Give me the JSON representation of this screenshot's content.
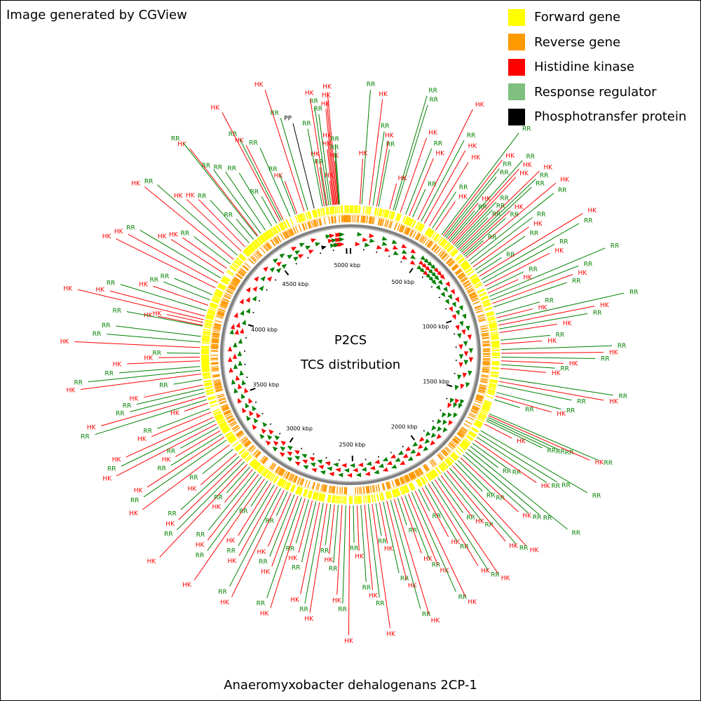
{
  "header": {
    "credit": "Image generated by CGView"
  },
  "footer": {
    "organism": "Anaeromyxobacter dehalogenans 2CP-1"
  },
  "legend": [
    {
      "label": "Forward gene",
      "color": "#ffff00"
    },
    {
      "label": "Reverse gene",
      "color": "#ff9900"
    },
    {
      "label": "Histidine kinase",
      "color": "#ff0000"
    },
    {
      "label": "Response regulator",
      "color": "#7fbf7f"
    },
    {
      "label": "Phosphotransfer protein",
      "color": "#000000"
    }
  ],
  "center": {
    "line1": "P2CS",
    "line2": "TCS distribution"
  },
  "genome": {
    "length_kbp": 5030,
    "tick_labels": [
      {
        "kbp": 500,
        "label": "500 kbp"
      },
      {
        "kbp": 1000,
        "label": "1000 kbp"
      },
      {
        "kbp": 1500,
        "label": "1500 kbp"
      },
      {
        "kbp": 2000,
        "label": "2000 kbp"
      },
      {
        "kbp": 2500,
        "label": "2500 kbp"
      },
      {
        "kbp": 3000,
        "label": "3000 kbp"
      },
      {
        "kbp": 3500,
        "label": "3500 kbp"
      },
      {
        "kbp": 4000,
        "label": "4000 kbp"
      },
      {
        "kbp": 4500,
        "label": "4500 kbp"
      },
      {
        "kbp": 5000,
        "label": "5000 kbp"
      }
    ]
  },
  "colors": {
    "histidine_kinase": "#ff0000",
    "response_regulator": "#008000",
    "phosphotransfer": "#000000",
    "backbone": "#808080",
    "forward_gene": "#ffff00",
    "reverse_gene": "#ff9900"
  },
  "features": [
    {
      "label": "HK",
      "type": "HK",
      "kbp": 4935
    },
    {
      "label": "HK",
      "type": "HK",
      "kbp": 4940
    },
    {
      "label": "HK",
      "type": "HK",
      "kbp": 4945
    },
    {
      "label": "HK",
      "type": "HK",
      "kbp": 4950
    },
    {
      "label": "HK",
      "type": "HK",
      "kbp": 4955
    },
    {
      "label": "HK",
      "type": "HK",
      "kbp": 4960
    },
    {
      "label": "HK",
      "type": "HK",
      "kbp": 4965
    },
    {
      "label": "RR",
      "type": "RR",
      "kbp": 4968
    },
    {
      "label": "RR",
      "type": "RR",
      "kbp": 4972
    },
    {
      "label": "RR",
      "type": "RR",
      "kbp": 4925
    },
    {
      "label": "RR",
      "type": "RR",
      "kbp": 4915
    },
    {
      "label": "HK",
      "type": "HK",
      "kbp": 4905
    },
    {
      "label": "RR",
      "type": "RR",
      "kbp": 4900
    },
    {
      "label": "HK",
      "type": "HK",
      "kbp": 4890
    },
    {
      "label": "RR",
      "type": "RR",
      "kbp": 4880
    },
    {
      "label": "PP",
      "type": "PP",
      "kbp": 4835
    },
    {
      "label": "RR",
      "type": "RR",
      "kbp": 4800
    },
    {
      "label": "HK",
      "type": "HK",
      "kbp": 4780
    },
    {
      "label": "HK",
      "type": "HK",
      "kbp": 4740
    },
    {
      "label": "RR",
      "type": "RR",
      "kbp": 4730
    },
    {
      "label": "RR",
      "type": "RR",
      "kbp": 4700
    },
    {
      "label": "HK",
      "type": "HK",
      "kbp": 4660
    },
    {
      "label": "RR",
      "type": "RR",
      "kbp": 4650
    },
    {
      "label": "HK",
      "type": "HK",
      "kbp": 4640
    },
    {
      "label": "RR",
      "type": "RR",
      "kbp": 4620
    },
    {
      "label": "RR",
      "type": "RR",
      "kbp": 4590
    },
    {
      "label": "RR",
      "type": "RR",
      "kbp": 4550
    },
    {
      "label": "RR",
      "type": "RR",
      "kbp": 4520
    },
    {
      "label": "HK",
      "type": "HK",
      "kbp": 4500
    },
    {
      "label": "RR",
      "type": "RR",
      "kbp": 4495
    },
    {
      "label": "RR",
      "type": "RR",
      "kbp": 4470
    },
    {
      "label": "RR",
      "type": "RR",
      "kbp": 4440
    },
    {
      "label": "HK",
      "type": "HK",
      "kbp": 4410
    },
    {
      "label": "HK",
      "type": "HK",
      "kbp": 4380
    },
    {
      "label": "RR",
      "type": "RR",
      "kbp": 4350
    },
    {
      "label": "HK",
      "type": "HK",
      "kbp": 4320
    },
    {
      "label": "RR",
      "type": "RR",
      "kbp": 4290
    },
    {
      "label": "HK",
      "type": "HK",
      "kbp": 4260
    },
    {
      "label": "HK",
      "type": "HK",
      "kbp": 4230
    },
    {
      "label": "RR",
      "type": "RR",
      "kbp": 4200
    },
    {
      "label": "HK",
      "type": "HK",
      "kbp": 4170
    },
    {
      "label": "HK",
      "type": "HK",
      "kbp": 4140
    },
    {
      "label": "RR",
      "type": "RR",
      "kbp": 4100
    },
    {
      "label": "RR",
      "type": "RR",
      "kbp": 4070
    },
    {
      "label": "HK",
      "type": "HK",
      "kbp": 4040
    },
    {
      "label": "RR",
      "type": "RR",
      "kbp": 4010
    },
    {
      "label": "HK",
      "type": "HK",
      "kbp": 3980
    },
    {
      "label": "HK",
      "type": "HK",
      "kbp": 3960
    },
    {
      "label": "HK",
      "type": "HK",
      "kbp": 3945
    },
    {
      "label": "HK",
      "type": "HK",
      "kbp": 3930
    },
    {
      "label": "RR",
      "type": "RR",
      "kbp": 3925
    },
    {
      "label": "RR",
      "type": "RR",
      "kbp": 3870
    },
    {
      "label": "RR",
      "type": "RR",
      "kbp": 3840
    },
    {
      "label": "HK",
      "type": "HK",
      "kbp": 3810
    },
    {
      "label": "RR",
      "type": "RR",
      "kbp": 3780
    },
    {
      "label": "HK",
      "type": "HK",
      "kbp": 3760
    },
    {
      "label": "HK",
      "type": "HK",
      "kbp": 3740
    },
    {
      "label": "RR",
      "type": "RR",
      "kbp": 3710
    },
    {
      "label": "RR",
      "type": "RR",
      "kbp": 3690
    },
    {
      "label": "HK",
      "type": "HK",
      "kbp": 3670
    },
    {
      "label": "RR",
      "type": "RR",
      "kbp": 3640
    },
    {
      "label": "HK",
      "type": "HK",
      "kbp": 3610
    },
    {
      "label": "RR",
      "type": "RR",
      "kbp": 3590
    },
    {
      "label": "RR",
      "type": "RR",
      "kbp": 3570
    },
    {
      "label": "HK",
      "type": "HK",
      "kbp": 3550
    },
    {
      "label": "RR",
      "type": "RR",
      "kbp": 3530
    },
    {
      "label": "HK",
      "type": "HK",
      "kbp": 3510
    },
    {
      "label": "RR",
      "type": "RR",
      "kbp": 3480
    },
    {
      "label": "HK",
      "type": "HK",
      "kbp": 3460
    },
    {
      "label": "HK",
      "type": "HK",
      "kbp": 3430
    },
    {
      "label": "RR",
      "type": "RR",
      "kbp": 3410
    },
    {
      "label": "HK",
      "type": "HK",
      "kbp": 3390
    },
    {
      "label": "RR",
      "type": "RR",
      "kbp": 3370
    },
    {
      "label": "HK",
      "type": "HK",
      "kbp": 3350
    },
    {
      "label": "RR",
      "type": "RR",
      "kbp": 3330
    },
    {
      "label": "HK",
      "type": "HK",
      "kbp": 3310
    },
    {
      "label": "RR",
      "type": "RR",
      "kbp": 3290
    },
    {
      "label": "HK",
      "type": "HK",
      "kbp": 3260
    },
    {
      "label": "RR",
      "type": "RR",
      "kbp": 3230
    },
    {
      "label": "HK",
      "type": "HK",
      "kbp": 3200
    },
    {
      "label": "RR",
      "type": "RR",
      "kbp": 3180
    },
    {
      "label": "HK",
      "type": "HK",
      "kbp": 3160
    },
    {
      "label": "RR",
      "type": "RR",
      "kbp": 3140
    },
    {
      "label": "HK",
      "type": "HK",
      "kbp": 3120
    },
    {
      "label": "RR",
      "type": "RR",
      "kbp": 3100
    },
    {
      "label": "HK",
      "type": "HK",
      "kbp": 3080
    },
    {
      "label": "RR",
      "type": "RR",
      "kbp": 3060
    },
    {
      "label": "HK",
      "type": "HK",
      "kbp": 3040
    },
    {
      "label": "RR",
      "type": "RR",
      "kbp": 3020
    },
    {
      "label": "HK",
      "type": "HK",
      "kbp": 3000
    },
    {
      "label": "RR",
      "type": "RR",
      "kbp": 2980
    },
    {
      "label": "HK",
      "type": "HK",
      "kbp": 2960
    },
    {
      "label": "RR",
      "type": "RR",
      "kbp": 2940
    },
    {
      "label": "HK",
      "type": "HK",
      "kbp": 2920
    },
    {
      "label": "RR",
      "type": "RR",
      "kbp": 2900
    },
    {
      "label": "HK",
      "type": "HK",
      "kbp": 2880
    },
    {
      "label": "RR",
      "type": "RR",
      "kbp": 2860
    },
    {
      "label": "HK",
      "type": "HK",
      "kbp": 2840
    },
    {
      "label": "RR",
      "type": "RR",
      "kbp": 2820
    },
    {
      "label": "HK",
      "type": "HK",
      "kbp": 2800
    },
    {
      "label": "RR",
      "type": "RR",
      "kbp": 2780
    },
    {
      "label": "HK",
      "type": "HK",
      "kbp": 2760
    },
    {
      "label": "RR",
      "type": "RR",
      "kbp": 2740
    },
    {
      "label": "HK",
      "type": "HK",
      "kbp": 2720
    },
    {
      "label": "RR",
      "type": "RR",
      "kbp": 2700
    },
    {
      "label": "HK",
      "type": "HK",
      "kbp": 2680
    },
    {
      "label": "RR",
      "type": "RR",
      "kbp": 2660
    },
    {
      "label": "HK",
      "type": "HK",
      "kbp": 2640
    },
    {
      "label": "RR",
      "type": "RR",
      "kbp": 2620
    },
    {
      "label": "HK",
      "type": "HK",
      "kbp": 2600
    },
    {
      "label": "RR",
      "type": "RR",
      "kbp": 2580
    },
    {
      "label": "HK",
      "type": "HK",
      "kbp": 2560
    },
    {
      "label": "RR",
      "type": "RR",
      "kbp": 2540
    },
    {
      "label": "HK",
      "type": "HK",
      "kbp": 2520
    },
    {
      "label": "RR",
      "type": "RR",
      "kbp": 2500
    },
    {
      "label": "HK",
      "type": "HK",
      "kbp": 2480
    },
    {
      "label": "RR",
      "type": "RR",
      "kbp": 2460
    },
    {
      "label": "HK",
      "type": "HK",
      "kbp": 2440
    },
    {
      "label": "RR",
      "type": "RR",
      "kbp": 2420
    },
    {
      "label": "HK",
      "type": "HK",
      "kbp": 2400
    },
    {
      "label": "RR",
      "type": "RR",
      "kbp": 2380
    },
    {
      "label": "HK",
      "type": "HK",
      "kbp": 2360
    },
    {
      "label": "RR",
      "type": "RR",
      "kbp": 2340
    },
    {
      "label": "HK",
      "type": "HK",
      "kbp": 2320
    },
    {
      "label": "RR",
      "type": "RR",
      "kbp": 2300
    },
    {
      "label": "HK",
      "type": "HK",
      "kbp": 2280
    },
    {
      "label": "RR",
      "type": "RR",
      "kbp": 2260
    },
    {
      "label": "HK",
      "type": "HK",
      "kbp": 2240
    },
    {
      "label": "RR",
      "type": "RR",
      "kbp": 2220
    },
    {
      "label": "HK",
      "type": "HK",
      "kbp": 2200
    },
    {
      "label": "RR",
      "type": "RR",
      "kbp": 2180
    },
    {
      "label": "HK",
      "type": "HK",
      "kbp": 2160
    },
    {
      "label": "RR",
      "type": "RR",
      "kbp": 2140
    },
    {
      "label": "HK",
      "type": "HK",
      "kbp": 2120
    },
    {
      "label": "RR",
      "type": "RR",
      "kbp": 2100
    },
    {
      "label": "HK",
      "type": "HK",
      "kbp": 2080
    },
    {
      "label": "RR",
      "type": "RR",
      "kbp": 2060
    },
    {
      "label": "HK",
      "type": "HK",
      "kbp": 2040
    },
    {
      "label": "RR",
      "type": "RR",
      "kbp": 2020
    },
    {
      "label": "HK",
      "type": "HK",
      "kbp": 2000
    },
    {
      "label": "RR",
      "type": "RR",
      "kbp": 1980
    },
    {
      "label": "HK",
      "type": "HK",
      "kbp": 1960
    },
    {
      "label": "RR",
      "type": "RR",
      "kbp": 1940
    },
    {
      "label": "HK",
      "type": "HK",
      "kbp": 1920
    },
    {
      "label": "RR",
      "type": "RR",
      "kbp": 1900
    },
    {
      "label": "RR",
      "type": "RR",
      "kbp": 1880
    },
    {
      "label": "HK",
      "type": "HK",
      "kbp": 1860
    },
    {
      "label": "RR",
      "type": "RR",
      "kbp": 1840
    },
    {
      "label": "RR",
      "type": "RR",
      "kbp": 1820
    },
    {
      "label": "RR",
      "type": "RR",
      "kbp": 1800
    },
    {
      "label": "RR",
      "type": "RR",
      "kbp": 1780
    },
    {
      "label": "RR",
      "type": "RR",
      "kbp": 1760
    },
    {
      "label": "HK",
      "type": "HK",
      "kbp": 1740
    },
    {
      "label": "RR",
      "type": "RR",
      "kbp": 1720
    },
    {
      "label": "RR",
      "type": "RR",
      "kbp": 1700
    },
    {
      "label": "RR",
      "type": "RR",
      "kbp": 1680
    },
    {
      "label": "HK",
      "type": "HK",
      "kbp": 1640
    },
    {
      "label": "RR",
      "type": "RR",
      "kbp": 1620
    },
    {
      "label": "RR",
      "type": "RR",
      "kbp": 1610
    },
    {
      "label": "RR",
      "type": "RR",
      "kbp": 1600
    },
    {
      "label": "HK",
      "type": "HK",
      "kbp": 1590
    },
    {
      "label": "RR",
      "type": "RR",
      "kbp": 1580
    },
    {
      "label": "RR",
      "type": "RR",
      "kbp": 1500
    },
    {
      "label": "HK",
      "type": "HK",
      "kbp": 1480
    },
    {
      "label": "RR",
      "type": "RR",
      "kbp": 1460
    },
    {
      "label": "RR",
      "type": "RR",
      "kbp": 1420
    },
    {
      "label": "HK",
      "type": "HK",
      "kbp": 1400
    },
    {
      "label": "RR",
      "type": "RR",
      "kbp": 1380
    },
    {
      "label": "HK",
      "type": "HK",
      "kbp": 1330
    },
    {
      "label": "RR",
      "type": "RR",
      "kbp": 1310
    },
    {
      "label": "HK",
      "type": "HK",
      "kbp": 1290
    },
    {
      "label": "RR",
      "type": "RR",
      "kbp": 1270
    },
    {
      "label": "HK",
      "type": "HK",
      "kbp": 1250
    },
    {
      "label": "RR",
      "type": "RR",
      "kbp": 1230
    },
    {
      "label": "HK",
      "type": "HK",
      "kbp": 1200
    },
    {
      "label": "RR",
      "type": "RR",
      "kbp": 1180
    },
    {
      "label": "HK",
      "type": "HK",
      "kbp": 1140
    },
    {
      "label": "RR",
      "type": "RR",
      "kbp": 1120
    },
    {
      "label": "HK",
      "type": "HK",
      "kbp": 1100
    },
    {
      "label": "RR",
      "type": "RR",
      "kbp": 1080
    },
    {
      "label": "HK",
      "type": "HK",
      "kbp": 1060
    },
    {
      "label": "RR",
      "type": "RR",
      "kbp": 1040
    },
    {
      "label": "RR",
      "type": "RR",
      "kbp": 1000
    },
    {
      "label": "HK",
      "type": "HK",
      "kbp": 980
    },
    {
      "label": "RR",
      "type": "RR",
      "kbp": 960
    },
    {
      "label": "RR",
      "type": "RR",
      "kbp": 940
    },
    {
      "label": "HK",
      "type": "HK",
      "kbp": 920
    },
    {
      "label": "RR",
      "type": "RR",
      "kbp": 900
    },
    {
      "label": "HK",
      "type": "HK",
      "kbp": 880
    },
    {
      "label": "RR",
      "type": "RR",
      "kbp": 860
    },
    {
      "label": "RR",
      "type": "RR",
      "kbp": 840
    },
    {
      "label": "HK",
      "type": "HK",
      "kbp": 820
    },
    {
      "label": "RR",
      "type": "RR",
      "kbp": 800
    },
    {
      "label": "RR",
      "type": "RR",
      "kbp": 780
    },
    {
      "label": "HK",
      "type": "HK",
      "kbp": 760
    },
    {
      "label": "RR",
      "type": "RR",
      "kbp": 740
    },
    {
      "label": "RR",
      "type": "RR",
      "kbp": 720
    },
    {
      "label": "HK",
      "type": "HK",
      "kbp": 700
    },
    {
      "label": "RR",
      "type": "RR",
      "kbp": 690
    },
    {
      "label": "RR",
      "type": "RR",
      "kbp": 680
    },
    {
      "label": "HK",
      "type": "HK",
      "kbp": 670
    },
    {
      "label": "RR",
      "type": "RR",
      "kbp": 660
    },
    {
      "label": "RR",
      "type": "RR",
      "kbp": 650
    },
    {
      "label": "HK",
      "type": "HK",
      "kbp": 640
    },
    {
      "label": "RR",
      "type": "RR",
      "kbp": 630
    },
    {
      "label": "RR",
      "type": "RR",
      "kbp": 620
    },
    {
      "label": "RR",
      "type": "RR",
      "kbp": 610
    },
    {
      "label": "HK",
      "type": "HK",
      "kbp": 600
    },
    {
      "label": "HK",
      "type": "HK",
      "kbp": 590
    },
    {
      "label": "RR",
      "type": "RR",
      "kbp": 580
    },
    {
      "label": "RR",
      "type": "RR",
      "kbp": 570
    },
    {
      "label": "HK",
      "type": "HK",
      "kbp": 560
    },
    {
      "label": "RR",
      "type": "RR",
      "kbp": 550
    },
    {
      "label": "RR",
      "type": "RR",
      "kbp": 540
    },
    {
      "label": "HK",
      "type": "HK",
      "kbp": 530
    },
    {
      "label": "RR",
      "type": "RR",
      "kbp": 520
    },
    {
      "label": "HK",
      "type": "HK",
      "kbp": 480
    },
    {
      "label": "RR",
      "type": "RR",
      "kbp": 460
    },
    {
      "label": "HK",
      "type": "HK",
      "kbp": 440
    },
    {
      "label": "HK",
      "type": "HK",
      "kbp": 410
    },
    {
      "label": "RR",
      "type": "RR",
      "kbp": 390
    },
    {
      "label": "HK",
      "type": "HK",
      "kbp": 370
    },
    {
      "label": "RR",
      "type": "RR",
      "kbp": 340
    },
    {
      "label": "HK",
      "type": "HK",
      "kbp": 320
    },
    {
      "label": "RR",
      "type": "RR",
      "kbp": 300
    },
    {
      "label": "HK",
      "type": "HK",
      "kbp": 270
    },
    {
      "label": "RR",
      "type": "RR",
      "kbp": 240
    },
    {
      "label": "RR",
      "type": "RR",
      "kbp": 230
    },
    {
      "label": "HK",
      "type": "HK",
      "kbp": 210
    },
    {
      "label": "RR",
      "type": "RR",
      "kbp": 150
    },
    {
      "label": "HK",
      "type": "HK",
      "kbp": 140
    },
    {
      "label": "RR",
      "type": "RR",
      "kbp": 120
    },
    {
      "label": "HK",
      "type": "HK",
      "kbp": 100
    },
    {
      "label": "RR",
      "type": "RR",
      "kbp": 60
    },
    {
      "label": "HK",
      "type": "HK",
      "kbp": 50
    }
  ]
}
